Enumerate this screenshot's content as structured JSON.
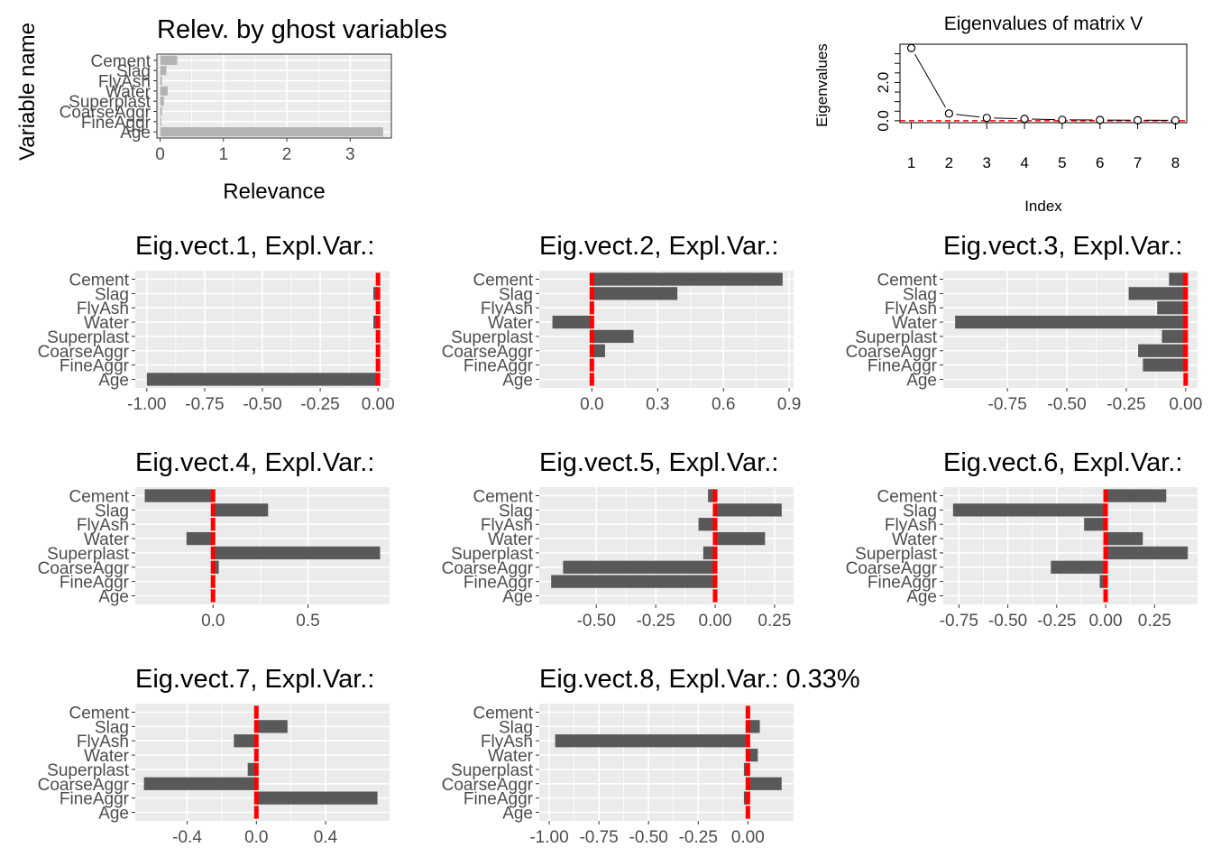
{
  "chart_data": [
    {
      "id": "relevance",
      "type": "bar",
      "orientation": "horizontal",
      "title": "Relev. by ghost variables",
      "xlabel": "Relevance",
      "ylabel": "Variable name",
      "categories": [
        "Cement",
        "Slag",
        "FlyAsh",
        "Water",
        "Superplast",
        "CoarseAggr",
        "FineAggr",
        "Age"
      ],
      "values": [
        0.27,
        0.1,
        0.03,
        0.12,
        0.06,
        0.03,
        0.02,
        3.52
      ],
      "xlim": [
        -0.05,
        3.65
      ],
      "xticks": [
        0,
        1,
        2,
        3
      ],
      "xtick_labels": [
        "0",
        "1",
        "2",
        "3"
      ],
      "bar_color": "#b3b3b3"
    },
    {
      "id": "eigenvalues",
      "type": "line",
      "title": "Eigenvalues of matrix V",
      "xlabel": "Index",
      "ylabel": "Eigenvalues",
      "x": [
        1,
        2,
        3,
        4,
        5,
        6,
        7,
        8
      ],
      "y": [
        3.8,
        0.38,
        0.15,
        0.1,
        0.05,
        0.04,
        0.03,
        0.02
      ],
      "xlim": [
        0.7,
        8.3
      ],
      "ylim": [
        -0.1,
        4.0
      ],
      "xticks": [
        1,
        2,
        3,
        4,
        5,
        6,
        7,
        8
      ],
      "xtick_labels": [
        "1",
        "2",
        "3",
        "4",
        "5",
        "6",
        "7",
        "8"
      ],
      "yticks": [
        0,
        2
      ],
      "ytick_labels": [
        "0.0",
        "2.0"
      ],
      "reference_line": 0.0
    },
    {
      "id": "eigvect1",
      "type": "bar",
      "orientation": "horizontal",
      "title": "Eig.vect.1, Expl.Var.:",
      "categories": [
        "Cement",
        "Slag",
        "FlyAsh",
        "Water",
        "Superplast",
        "CoarseAggr",
        "FineAggr",
        "Age"
      ],
      "values": [
        0.0,
        -0.02,
        0.0,
        -0.02,
        0.0,
        0.0,
        0.0,
        -1.0
      ],
      "xlim": [
        -1.05,
        0.05
      ],
      "xticks": [
        -1.0,
        -0.75,
        -0.5,
        -0.25,
        0.0
      ],
      "xtick_labels": [
        "-1.00",
        "-0.75",
        "-0.50",
        "-0.25",
        "0.00"
      ]
    },
    {
      "id": "eigvect2",
      "type": "bar",
      "orientation": "horizontal",
      "title": "Eig.vect.2, Expl.Var.:",
      "categories": [
        "Cement",
        "Slag",
        "FlyAsh",
        "Water",
        "Superplast",
        "CoarseAggr",
        "FineAggr",
        "Age"
      ],
      "values": [
        0.87,
        0.39,
        0.0,
        -0.18,
        0.19,
        0.06,
        0.0,
        0.0
      ],
      "xlim": [
        -0.24,
        0.92
      ],
      "xticks": [
        0.0,
        0.3,
        0.6,
        0.9
      ],
      "xtick_labels": [
        "0.0",
        "0.3",
        "0.6",
        "0.9"
      ]
    },
    {
      "id": "eigvect3",
      "type": "bar",
      "orientation": "horizontal",
      "title": "Eig.vect.3, Expl.Var.:",
      "categories": [
        "Cement",
        "Slag",
        "FlyAsh",
        "Water",
        "Superplast",
        "CoarseAggr",
        "FineAggr",
        "Age"
      ],
      "values": [
        -0.07,
        -0.24,
        -0.12,
        -0.97,
        -0.1,
        -0.2,
        -0.18,
        0.0
      ],
      "xlim": [
        -1.02,
        0.05
      ],
      "xticks": [
        -0.75,
        -0.5,
        -0.25,
        0.0
      ],
      "xtick_labels": [
        "-0.75",
        "-0.50",
        "-0.25",
        "0.00"
      ]
    },
    {
      "id": "eigvect4",
      "type": "bar",
      "orientation": "horizontal",
      "title": "Eig.vect.4, Expl.Var.:",
      "categories": [
        "Cement",
        "Slag",
        "FlyAsh",
        "Water",
        "Superplast",
        "CoarseAggr",
        "FineAggr",
        "Age"
      ],
      "values": [
        -0.36,
        0.29,
        0.0,
        -0.14,
        0.88,
        0.03,
        0.0,
        0.0
      ],
      "xlim": [
        -0.41,
        0.93
      ],
      "xticks": [
        0.0,
        0.5
      ],
      "xtick_labels": [
        "0.0",
        "0.5"
      ]
    },
    {
      "id": "eigvect5",
      "type": "bar",
      "orientation": "horizontal",
      "title": "Eig.vect.5, Expl.Var.:",
      "categories": [
        "Cement",
        "Slag",
        "FlyAsh",
        "Water",
        "Superplast",
        "CoarseAggr",
        "FineAggr",
        "Age"
      ],
      "values": [
        -0.03,
        0.28,
        -0.07,
        0.21,
        -0.05,
        -0.64,
        -0.69,
        0.0
      ],
      "xlim": [
        -0.74,
        0.33
      ],
      "xticks": [
        -0.5,
        -0.25,
        0.0,
        0.25
      ],
      "xtick_labels": [
        "-0.50",
        "-0.25",
        "0.00",
        "0.25"
      ]
    },
    {
      "id": "eigvect6",
      "type": "bar",
      "orientation": "horizontal",
      "title": "Eig.vect.6, Expl.Var.:",
      "categories": [
        "Cement",
        "Slag",
        "FlyAsh",
        "Water",
        "Superplast",
        "CoarseAggr",
        "FineAggr",
        "Age"
      ],
      "values": [
        0.31,
        -0.78,
        -0.11,
        0.19,
        0.42,
        -0.28,
        -0.03,
        0.0
      ],
      "xlim": [
        -0.83,
        0.47
      ],
      "xticks": [
        -0.75,
        -0.5,
        -0.25,
        0.0,
        0.25
      ],
      "xtick_labels": [
        "-0.75",
        "-0.50",
        "-0.25",
        "0.00",
        "0.25"
      ]
    },
    {
      "id": "eigvect7",
      "type": "bar",
      "orientation": "horizontal",
      "title": "Eig.vect.7, Expl.Var.:",
      "categories": [
        "Cement",
        "Slag",
        "FlyAsh",
        "Water",
        "Superplast",
        "CoarseAggr",
        "FineAggr",
        "Age"
      ],
      "values": [
        -0.01,
        0.18,
        -0.13,
        -0.01,
        -0.05,
        -0.65,
        0.7,
        0.0
      ],
      "xlim": [
        -0.7,
        0.77
      ],
      "xticks": [
        -0.4,
        0.0,
        0.4
      ],
      "xtick_labels": [
        "-0.4",
        "0.0",
        "0.4"
      ]
    },
    {
      "id": "eigvect8",
      "type": "bar",
      "orientation": "horizontal",
      "title": "Eig.vect.8, Expl.Var.: 0.33%",
      "categories": [
        "Cement",
        "Slag",
        "FlyAsh",
        "Water",
        "Superplast",
        "CoarseAggr",
        "FineAggr",
        "Age"
      ],
      "values": [
        0.0,
        0.06,
        -0.97,
        0.05,
        -0.02,
        0.17,
        -0.02,
        0.0
      ],
      "xlim": [
        -1.05,
        0.23
      ],
      "xticks": [
        -1.0,
        -0.75,
        -0.5,
        -0.25,
        0.0
      ],
      "xtick_labels": [
        "-1.00",
        "-0.75",
        "-0.50",
        "-0.25",
        "0.00"
      ]
    }
  ],
  "colors": {
    "panel_background": "#ebebeb",
    "bar": "#595959",
    "zero_marker": "#ff0000",
    "relevance_bar": "#b3b3b3",
    "eigen_reference": "#ff0000"
  }
}
